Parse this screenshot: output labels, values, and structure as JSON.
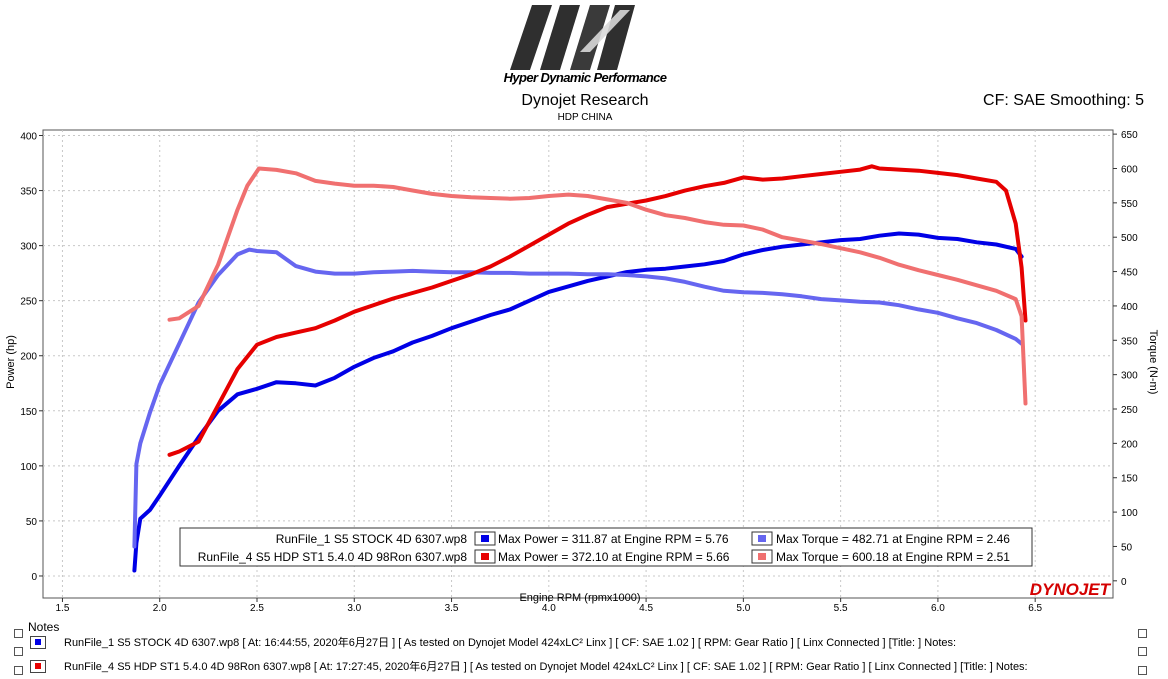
{
  "header": {
    "logo_text": "Hyper Dynamic Performance",
    "title": "Dynojet Research",
    "subtitle": "HDP CHINA",
    "cf_label": "CF: SAE Smoothing: 5"
  },
  "colors": {
    "run1_power": "#0000e6",
    "run1_torque": "#6666f0",
    "run4_power": "#e60000",
    "run4_torque": "#f07070",
    "grid": "#c8c8c8",
    "brand": "#d40000"
  },
  "chart_data": {
    "type": "line",
    "xlabel": "Engine RPM (rpmx1000)",
    "ylabel_left": "Power (hp)",
    "ylabel_right": "Torque (N-m)",
    "xlim": [
      1.4,
      6.9
    ],
    "ylim_left": [
      -20,
      405
    ],
    "ylim_right": [
      -25,
      656
    ],
    "x_ticks": [
      "1.5",
      "2.0",
      "2.5",
      "3.0",
      "3.5",
      "4.0",
      "4.5",
      "5.0",
      "5.5",
      "6.0",
      "6.5"
    ],
    "y_ticks_left": [
      "0",
      "50",
      "100",
      "150",
      "200",
      "250",
      "300",
      "350",
      "400"
    ],
    "y_ticks_right": [
      "0",
      "50",
      "100",
      "150",
      "200",
      "250",
      "300",
      "350",
      "400",
      "450",
      "500",
      "550",
      "600",
      "650"
    ],
    "grid": true,
    "legend_placement": "bottom-center",
    "legend": [
      {
        "run": "RunFile_1 S5 STOCK 4D 6307.wp8",
        "power": "Max Power = 311.87 at Engine RPM = 5.76",
        "torque": "Max Torque = 482.71 at Engine RPM = 2.46"
      },
      {
        "run": "RunFile_4 S5 HDP ST1 5.4.0 4D 98Ron 6307.wp8",
        "power": "Max Power = 372.10 at Engine RPM = 5.66",
        "torque": "Max Torque = 600.18 at Engine RPM = 2.51"
      }
    ],
    "brand_label": "DYNOJET",
    "series": [
      {
        "axis": "left",
        "color": "#0000e6",
        "x": [
          1.87,
          1.88,
          1.9,
          1.95,
          2.0,
          2.1,
          2.2,
          2.3,
          2.4,
          2.5,
          2.6,
          2.7,
          2.8,
          2.9,
          3.0,
          3.1,
          3.2,
          3.3,
          3.4,
          3.5,
          3.6,
          3.7,
          3.8,
          3.9,
          4.0,
          4.1,
          4.2,
          4.3,
          4.4,
          4.5,
          4.6,
          4.7,
          4.8,
          4.9,
          5.0,
          5.1,
          5.2,
          5.3,
          5.4,
          5.5,
          5.6,
          5.7,
          5.8,
          5.9,
          6.0,
          6.1,
          6.2,
          6.3,
          6.4,
          6.43
        ],
        "values": [
          5,
          30,
          52,
          60,
          73,
          100,
          126,
          150,
          165,
          170,
          176,
          175,
          173,
          180,
          190,
          198,
          204,
          212,
          218,
          225,
          231,
          237,
          242,
          250,
          258,
          263,
          268,
          272,
          276,
          278,
          279,
          281,
          283,
          286,
          292,
          296,
          299,
          301,
          303,
          305,
          306,
          309,
          311,
          310,
          307,
          306,
          303,
          301,
          297,
          290
        ]
      },
      {
        "axis": "right",
        "color": "#6666f0",
        "x": [
          1.87,
          1.88,
          1.9,
          1.95,
          2.0,
          2.1,
          2.2,
          2.3,
          2.4,
          2.46,
          2.5,
          2.6,
          2.7,
          2.8,
          2.9,
          3.0,
          3.1,
          3.2,
          3.3,
          3.4,
          3.5,
          3.6,
          3.7,
          3.8,
          3.9,
          4.0,
          4.1,
          4.2,
          4.3,
          4.4,
          4.5,
          4.6,
          4.7,
          4.8,
          4.9,
          5.0,
          5.1,
          5.2,
          5.3,
          5.4,
          5.5,
          5.6,
          5.7,
          5.8,
          5.9,
          6.0,
          6.1,
          6.2,
          6.3,
          6.4,
          6.43
        ],
        "values": [
          50,
          170,
          200,
          245,
          285,
          345,
          405,
          445,
          475,
          482,
          480,
          478,
          458,
          450,
          447,
          447,
          449,
          450,
          451,
          450,
          449,
          449,
          448,
          448,
          447,
          447,
          447,
          446,
          446,
          445,
          443,
          440,
          435,
          428,
          422,
          420,
          419,
          417,
          414,
          410,
          408,
          406,
          405,
          401,
          395,
          390,
          382,
          375,
          365,
          352,
          345
        ]
      },
      {
        "axis": "left",
        "color": "#e60000",
        "x": [
          2.05,
          2.1,
          2.2,
          2.3,
          2.4,
          2.5,
          2.6,
          2.7,
          2.8,
          2.9,
          3.0,
          3.1,
          3.2,
          3.3,
          3.4,
          3.5,
          3.6,
          3.7,
          3.8,
          3.9,
          4.0,
          4.1,
          4.2,
          4.3,
          4.4,
          4.5,
          4.6,
          4.7,
          4.8,
          4.9,
          5.0,
          5.1,
          5.2,
          5.3,
          5.4,
          5.5,
          5.6,
          5.66,
          5.7,
          5.8,
          5.9,
          6.0,
          6.1,
          6.2,
          6.3,
          6.35,
          6.4,
          6.43,
          6.45
        ],
        "values": [
          110,
          113,
          122,
          155,
          188,
          210,
          217,
          221,
          225,
          232,
          240,
          246,
          252,
          257,
          262,
          268,
          274,
          281,
          290,
          300,
          310,
          320,
          328,
          335,
          338,
          341,
          345,
          350,
          354,
          357,
          362,
          360,
          361,
          363,
          365,
          367,
          369,
          372,
          370,
          369,
          368,
          366,
          364,
          361,
          358,
          350,
          320,
          280,
          232
        ]
      },
      {
        "axis": "right",
        "color": "#f07070",
        "x": [
          2.05,
          2.1,
          2.2,
          2.3,
          2.4,
          2.45,
          2.51,
          2.6,
          2.7,
          2.8,
          2.9,
          3.0,
          3.1,
          3.2,
          3.3,
          3.4,
          3.5,
          3.6,
          3.7,
          3.8,
          3.9,
          4.0,
          4.1,
          4.2,
          4.3,
          4.4,
          4.5,
          4.6,
          4.7,
          4.8,
          4.9,
          5.0,
          5.1,
          5.2,
          5.3,
          5.4,
          5.5,
          5.6,
          5.7,
          5.8,
          5.9,
          6.0,
          6.1,
          6.2,
          6.3,
          6.4,
          6.43,
          6.45
        ],
        "values": [
          380,
          382,
          400,
          460,
          540,
          575,
          600,
          598,
          593,
          582,
          578,
          575,
          575,
          573,
          568,
          563,
          560,
          558,
          557,
          556,
          557,
          560,
          562,
          560,
          555,
          550,
          540,
          532,
          528,
          522,
          518,
          517,
          511,
          500,
          495,
          490,
          484,
          478,
          470,
          460,
          452,
          445,
          438,
          430,
          422,
          410,
          385,
          258
        ]
      }
    ]
  },
  "notes": {
    "title": "Notes",
    "rows": [
      {
        "color": "#0000e6",
        "text": "RunFile_1 S5 STOCK 4D 6307.wp8 [ At: 16:44:55, 2020年6月27日 ] [ As tested on Dynojet Model 424xLC² Linx ] [ CF: SAE 1.02 ] [ RPM: Gear Ratio ] [ Linx Connected ] [Title: ] Notes:"
      },
      {
        "color": "#e60000",
        "text": "RunFile_4 S5 HDP ST1 5.4.0 4D 98Ron 6307.wp8 [ At: 17:27:45, 2020年6月27日 ] [ As tested on Dynojet Model 424xLC² Linx ] [ CF: SAE 1.02 ] [ RPM: Gear Ratio ] [ Linx Connected ] [Title: ] Notes:"
      }
    ]
  }
}
